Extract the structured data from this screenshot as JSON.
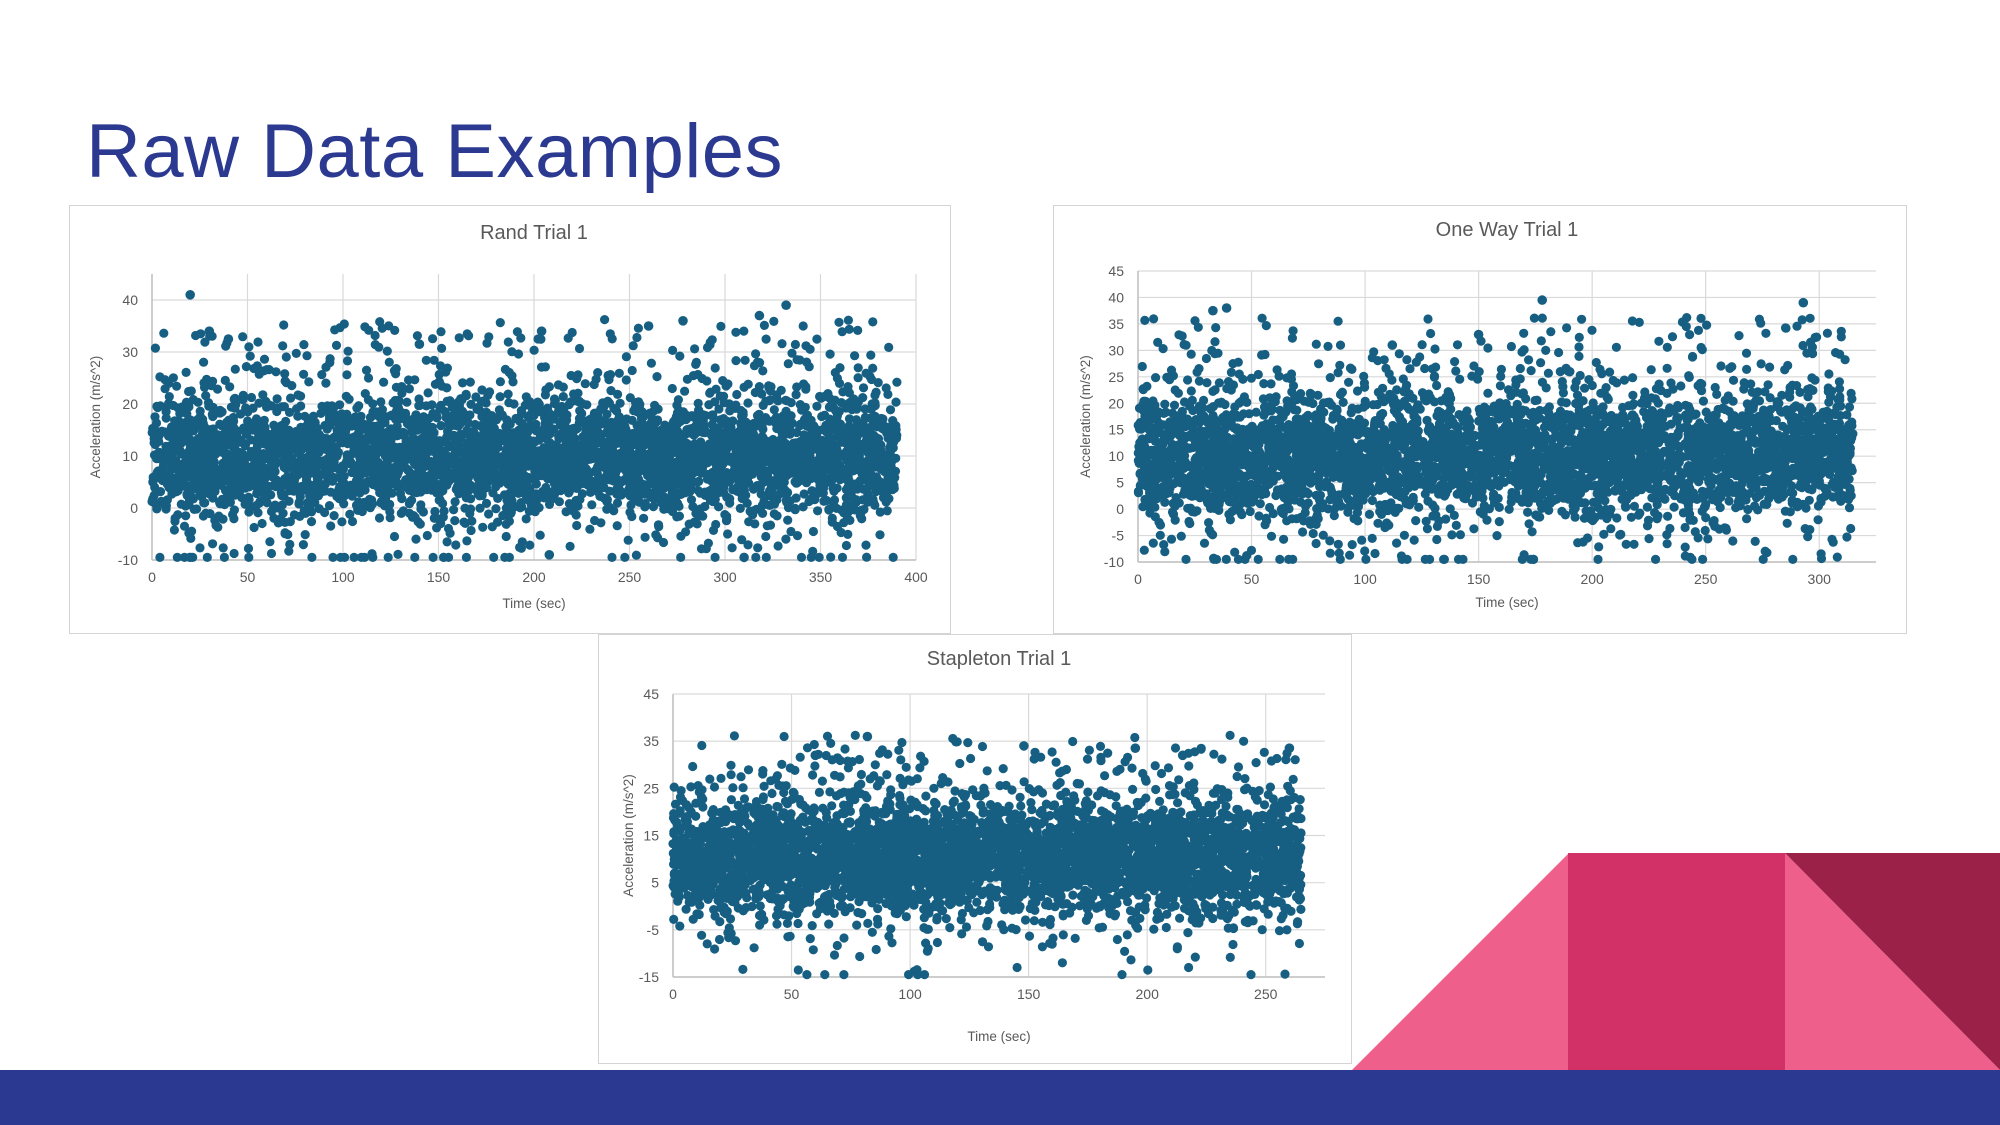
{
  "slide": {
    "title": "Raw Data Examples"
  },
  "colors": {
    "title": "#2b3990",
    "point": "#175f82",
    "grid": "#d9d9d9",
    "footer": "#2b3990",
    "pink_light": "#ef5f8c",
    "pink_mid": "#d13166",
    "pink_dark": "#9b2148"
  },
  "chart_data": [
    {
      "id": "rand",
      "type": "scatter",
      "title": "Rand Trial 1",
      "xlabel": "Time (sec)",
      "ylabel": "Acceleration (m/s^2)",
      "xlim": [
        0,
        400
      ],
      "ylim": [
        -10,
        45
      ],
      "xticks": [
        "0",
        "50",
        "100",
        "150",
        "200",
        "250",
        "300",
        "350",
        "400"
      ],
      "yticks": [
        "-10",
        "0",
        "10",
        "20",
        "30",
        "40"
      ],
      "grid": true,
      "data_range_x": [
        0,
        390
      ],
      "typical_y_range": [
        0,
        20
      ],
      "highlighted_outliers": [
        {
          "x": 20,
          "y": 41
        },
        {
          "x": 30,
          "y": 34
        },
        {
          "x": 40,
          "y": 32.5
        },
        {
          "x": 140,
          "y": 31.5
        },
        {
          "x": 204,
          "y": 34
        },
        {
          "x": 260,
          "y": 35
        },
        {
          "x": 278,
          "y": 36
        },
        {
          "x": 318,
          "y": 37
        },
        {
          "x": 332,
          "y": 39
        },
        {
          "x": 310,
          "y": -9.5
        },
        {
          "x": 208,
          "y": -9
        }
      ]
    },
    {
      "id": "oneway",
      "type": "scatter",
      "title": "One Way Trial 1",
      "xlabel": "Time (sec)",
      "ylabel": "Acceleration (m/s^2)",
      "xlim": [
        0,
        325
      ],
      "ylim": [
        -10,
        45
      ],
      "xticks": [
        "0",
        "50",
        "100",
        "150",
        "200",
        "250",
        "300"
      ],
      "yticks": [
        "-10",
        "-5",
        "0",
        "5",
        "10",
        "15",
        "20",
        "25",
        "30",
        "35",
        "40",
        "45"
      ],
      "grid": true,
      "data_range_x": [
        0,
        315
      ],
      "typical_y_range": [
        0,
        20
      ],
      "highlighted_outliers": [
        {
          "x": 33,
          "y": 37.5
        },
        {
          "x": 39,
          "y": 38
        },
        {
          "x": 178,
          "y": 39.5
        },
        {
          "x": 293,
          "y": 39
        },
        {
          "x": 150,
          "y": 33
        },
        {
          "x": 112,
          "y": 31
        }
      ]
    },
    {
      "id": "stapleton",
      "type": "scatter",
      "title": "Stapleton Trial 1",
      "xlabel": "Time (sec)",
      "ylabel": "Acceleration (m/s^2)",
      "xlim": [
        0,
        275
      ],
      "ylim": [
        -15,
        45
      ],
      "xticks": [
        "0",
        "50",
        "100",
        "150",
        "200",
        "250"
      ],
      "yticks": [
        "-15",
        "-5",
        "5",
        "15",
        "25",
        "35",
        "45"
      ],
      "grid": true,
      "data_range_x": [
        0,
        265
      ],
      "typical_y_range": [
        0,
        20
      ],
      "highlighted_outliers": [
        {
          "x": 82,
          "y": 36
        },
        {
          "x": 148,
          "y": 34
        },
        {
          "x": 195,
          "y": 33.5
        },
        {
          "x": 260,
          "y": 33.5
        },
        {
          "x": 60,
          "y": 32
        },
        {
          "x": 215,
          "y": 32
        }
      ]
    }
  ]
}
